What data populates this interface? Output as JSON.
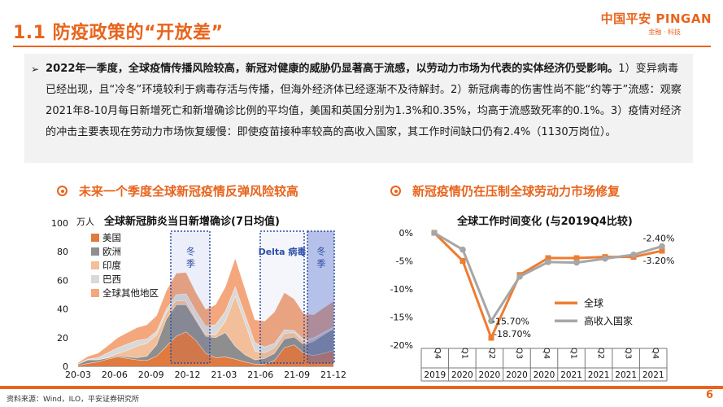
{
  "header": {
    "title": "1.1 防疫政策的“开放差”",
    "brand_main": "中国平安 PINGAN",
    "brand_sub": "金融 · 科技"
  },
  "summary": {
    "bold": "2022年一季度，全球疫情传播风险较高，新冠对健康的威胁仍显著高于流感，以劳动力市场为代表的实体经济仍受影响。",
    "text": "1）变异病毒已经出现，且“冷冬”环境较利于病毒存活与传播，但海外经济体已经逐渐不及待解封。2）新冠病毒的伤害性尚不能“约等于”流感：观察2021年8-10月每日新增死亡和新增确诊比例的平均值，美国和英国分别为1.3%和0.35%，均高于流感致死率的0.1%。3）疫情对经济的冲击主要表现在劳动力市场恢复缓慢：即使疫苗接种率较高的高收入国家，其工作时间缺口仍有2.4%（1130万岗位）。"
  },
  "sections": {
    "left_header": "未来一个季度全球新冠疫情反弹风险较高",
    "right_header": "新冠疫情仍在压制全球劳动力市场修复"
  },
  "chart_data": [
    {
      "type": "area",
      "title": "全球新冠肺炎当日新增确诊(7日均值)",
      "unit": "万人",
      "x_ticks": [
        "20-03",
        "20-06",
        "20-09",
        "20-12",
        "21-03",
        "21-06",
        "21-09",
        "21-12"
      ],
      "ylim": [
        0,
        100
      ],
      "y_ticks": [
        0,
        20,
        40,
        60,
        80,
        100
      ],
      "series": [
        {
          "name": "美国",
          "color": "#e07a3f",
          "values": [
            0.5,
            2,
            3,
            5,
            6.5,
            5.5,
            4.5,
            4,
            7,
            14,
            21,
            24,
            18,
            9,
            6,
            6.5,
            5,
            3,
            1.5,
            1.5,
            4,
            13,
            15,
            9,
            7.5,
            9,
            11
          ]
        },
        {
          "name": "欧洲",
          "color": "#8e8e8e",
          "values": [
            1,
            2.5,
            1.5,
            0.8,
            0.8,
            1,
            1.5,
            3,
            8,
            19,
            22,
            19,
            14,
            12,
            14,
            17,
            9,
            5,
            3,
            4,
            5,
            6,
            5.5,
            6,
            10,
            13,
            15
          ]
        },
        {
          "name": "印度",
          "color": "#f2bf9a",
          "values": [
            0,
            0,
            0,
            0.5,
            1.5,
            4.5,
            8,
            9,
            7,
            4.5,
            3,
            2.5,
            1.5,
            1.3,
            2,
            8,
            35,
            22,
            6,
            4,
            4,
            4,
            3,
            2,
            1.5,
            1,
            0.8
          ]
        },
        {
          "name": "巴西",
          "color": "#d9d9d9",
          "values": [
            0,
            0.5,
            1.5,
            3,
            4,
            4.5,
            4,
            3,
            2.5,
            2.5,
            4,
            5,
            5,
            5.5,
            7,
            7,
            6.5,
            6,
            6,
            4,
            3,
            2.5,
            1.5,
            1.5,
            1,
            0.8,
            0.5
          ]
        },
        {
          "name": "全球其他地区",
          "color": "#f4a77c",
          "values": [
            1,
            2,
            3,
            5,
            7,
            8,
            9,
            10,
            11,
            13,
            15,
            15,
            13,
            12,
            14,
            17,
            20,
            18,
            16,
            18,
            22,
            26,
            22,
            18,
            16,
            17,
            18
          ]
        }
      ],
      "annotations": [
        "冬季",
        "Delta 病毒",
        "冬季"
      ]
    },
    {
      "type": "line",
      "title": "全球工作时间变化 (与2019Q4比较)",
      "categories": [
        "Q4",
        "Q1",
        "Q2",
        "Q3",
        "Q4",
        "Q1",
        "Q2",
        "Q3",
        "Q4"
      ],
      "years": [
        "2019",
        "2020",
        "2020",
        "2020",
        "2020",
        "2021",
        "2021",
        "2021",
        "2021"
      ],
      "ylim": [
        -20,
        0
      ],
      "y_ticks": [
        "0%",
        "-5%",
        "-10%",
        "-15%",
        "-20%"
      ],
      "series": [
        {
          "name": "全球",
          "color": "#ed7d31",
          "values": [
            0,
            -5,
            -18.7,
            -7.5,
            -4.5,
            -4.5,
            -4.3,
            -4.3,
            -3.2
          ]
        },
        {
          "name": "高收入国家",
          "color": "#a6a6a6",
          "values": [
            0,
            -3,
            -15.7,
            -7.8,
            -5.2,
            -5.3,
            -4.6,
            -3.9,
            -2.4
          ]
        }
      ],
      "labels": [
        "-2.40%",
        "-3.20%",
        "-15.70%",
        "-18.70%"
      ]
    }
  ],
  "footer": {
    "source": "资料来源：Wind，ILO，平安证券研究所",
    "page": "6"
  }
}
